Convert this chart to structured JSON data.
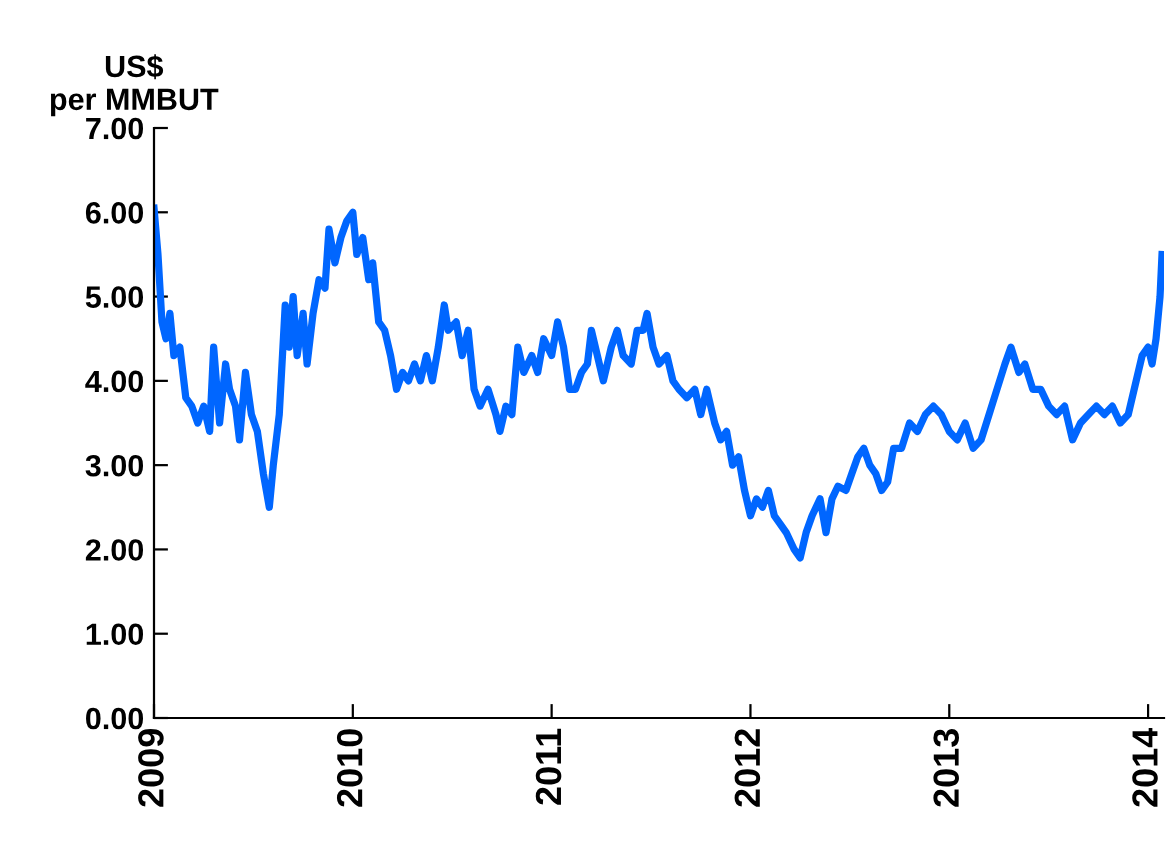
{
  "chart_data": {
    "type": "line",
    "ylabel": "US$\nper MMBUT",
    "xlim": [
      2009,
      2014.08
    ],
    "ylim": [
      0,
      7
    ],
    "xticks": [
      2009,
      2010,
      2011,
      2012,
      2013,
      2014
    ],
    "yticks": [
      {
        "value": 0,
        "label": "0.00"
      },
      {
        "value": 1,
        "label": "1.00"
      },
      {
        "value": 2,
        "label": "2.00"
      },
      {
        "value": 3,
        "label": "3.00"
      },
      {
        "value": 4,
        "label": "4.00"
      },
      {
        "value": 5,
        "label": "5.00"
      },
      {
        "value": 6,
        "label": "6.00"
      },
      {
        "value": 7,
        "label": "7.00"
      }
    ],
    "grid": false,
    "legend": false,
    "marker": "none",
    "line_style": "solid",
    "series": [
      {
        "color": "#0066ff",
        "x": [
          2009.0,
          2009.02,
          2009.04,
          2009.06,
          2009.08,
          2009.1,
          2009.13,
          2009.16,
          2009.19,
          2009.22,
          2009.25,
          2009.28,
          2009.3,
          2009.33,
          2009.36,
          2009.38,
          2009.41,
          2009.43,
          2009.46,
          2009.49,
          2009.52,
          2009.55,
          2009.58,
          2009.6,
          2009.63,
          2009.66,
          2009.68,
          2009.7,
          2009.72,
          2009.75,
          2009.77,
          2009.8,
          2009.83,
          2009.86,
          2009.88,
          2009.91,
          2009.94,
          2009.97,
          2010.0,
          2010.02,
          2010.05,
          2010.08,
          2010.1,
          2010.13,
          2010.16,
          2010.19,
          2010.22,
          2010.25,
          2010.28,
          2010.31,
          2010.34,
          2010.37,
          2010.4,
          2010.43,
          2010.46,
          2010.48,
          2010.52,
          2010.55,
          2010.58,
          2010.61,
          2010.64,
          2010.68,
          2010.72,
          2010.74,
          2010.77,
          2010.8,
          2010.83,
          2010.86,
          2010.9,
          2010.93,
          2010.96,
          2011.0,
          2011.03,
          2011.06,
          2011.09,
          2011.12,
          2011.15,
          2011.18,
          2011.2,
          2011.23,
          2011.26,
          2011.3,
          2011.33,
          2011.36,
          2011.4,
          2011.43,
          2011.46,
          2011.48,
          2011.51,
          2011.54,
          2011.58,
          2011.61,
          2011.64,
          2011.68,
          2011.72,
          2011.75,
          2011.78,
          2011.82,
          2011.85,
          2011.88,
          2011.91,
          2011.94,
          2011.97,
          2012.0,
          2012.03,
          2012.06,
          2012.09,
          2012.12,
          2012.15,
          2012.18,
          2012.22,
          2012.25,
          2012.28,
          2012.31,
          2012.35,
          2012.38,
          2012.41,
          2012.44,
          2012.48,
          2012.51,
          2012.54,
          2012.57,
          2012.6,
          2012.63,
          2012.66,
          2012.69,
          2012.72,
          2012.76,
          2012.8,
          2012.84,
          2012.88,
          2012.92,
          2012.96,
          2013.0,
          2013.04,
          2013.08,
          2013.12,
          2013.16,
          2013.2,
          2013.24,
          2013.28,
          2013.31,
          2013.35,
          2013.38,
          2013.42,
          2013.46,
          2013.5,
          2013.54,
          2013.58,
          2013.62,
          2013.66,
          2013.7,
          2013.74,
          2013.78,
          2013.82,
          2013.86,
          2013.9,
          2013.94,
          2013.97,
          2014.0,
          2014.02,
          2014.04,
          2014.06,
          2014.07
        ],
        "values": [
          6.05,
          5.5,
          4.7,
          4.5,
          4.8,
          4.3,
          4.4,
          3.8,
          3.7,
          3.5,
          3.7,
          3.4,
          4.4,
          3.5,
          4.2,
          3.9,
          3.7,
          3.3,
          4.1,
          3.6,
          3.4,
          2.9,
          2.5,
          3.0,
          3.6,
          4.9,
          4.4,
          5.0,
          4.3,
          4.8,
          4.2,
          4.8,
          5.2,
          5.1,
          5.8,
          5.4,
          5.7,
          5.9,
          6.0,
          5.5,
          5.7,
          5.2,
          5.4,
          4.7,
          4.6,
          4.3,
          3.9,
          4.1,
          4.0,
          4.2,
          4.0,
          4.3,
          4.0,
          4.4,
          4.9,
          4.6,
          4.7,
          4.3,
          4.6,
          3.9,
          3.7,
          3.9,
          3.6,
          3.4,
          3.7,
          3.6,
          4.4,
          4.1,
          4.3,
          4.1,
          4.5,
          4.3,
          4.7,
          4.4,
          3.9,
          3.9,
          4.1,
          4.2,
          4.6,
          4.3,
          4.0,
          4.4,
          4.6,
          4.3,
          4.2,
          4.6,
          4.6,
          4.8,
          4.4,
          4.2,
          4.3,
          4.0,
          3.9,
          3.8,
          3.9,
          3.6,
          3.9,
          3.5,
          3.3,
          3.4,
          3.0,
          3.1,
          2.7,
          2.4,
          2.6,
          2.5,
          2.7,
          2.4,
          2.3,
          2.2,
          2.0,
          1.9,
          2.2,
          2.4,
          2.6,
          2.2,
          2.6,
          2.75,
          2.7,
          2.9,
          3.1,
          3.2,
          3.0,
          2.9,
          2.7,
          2.8,
          3.2,
          3.2,
          3.5,
          3.4,
          3.6,
          3.7,
          3.6,
          3.4,
          3.3,
          3.5,
          3.2,
          3.3,
          3.6,
          3.9,
          4.2,
          4.4,
          4.1,
          4.2,
          3.9,
          3.9,
          3.7,
          3.6,
          3.7,
          3.3,
          3.5,
          3.6,
          3.7,
          3.6,
          3.7,
          3.5,
          3.6,
          4.0,
          4.3,
          4.4,
          4.2,
          4.5,
          5.0,
          5.5
        ]
      }
    ]
  }
}
